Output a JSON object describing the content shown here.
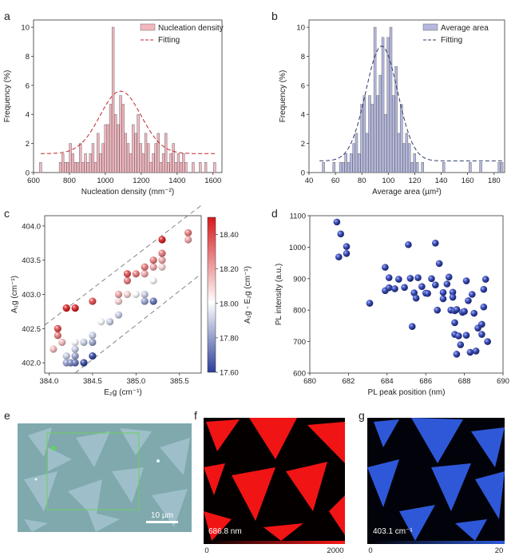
{
  "panels": {
    "a": "a",
    "b": "b",
    "c": "c",
    "d": "d",
    "e": "e",
    "f": "f",
    "g": "g"
  },
  "chart_data": [
    {
      "id": "a",
      "type": "bar",
      "title": "",
      "xlabel": "Nucleation density (mm⁻²)",
      "ylabel": "Frequency (%)",
      "xlim": [
        600,
        1650
      ],
      "ylim": [
        0,
        10.5
      ],
      "xticks": [
        600,
        800,
        1000,
        1200,
        1400,
        1600
      ],
      "yticks": [
        0,
        2,
        4,
        6,
        8,
        10
      ],
      "bin_width": 14,
      "bar_color": "#f4b6bf",
      "fit_color": "#c0262d",
      "legend": [
        "Nucleation density",
        "Fitting"
      ],
      "legend_position": "top-right",
      "bins": [
        [
          640,
          0.7
        ],
        [
          750,
          0.7
        ],
        [
          764,
          1.3
        ],
        [
          778,
          0.7
        ],
        [
          792,
          0.7
        ],
        [
          806,
          2.0
        ],
        [
          820,
          1.3
        ],
        [
          834,
          0.7
        ],
        [
          848,
          0.7
        ],
        [
          862,
          2.0
        ],
        [
          876,
          0.7
        ],
        [
          890,
          1.3
        ],
        [
          904,
          0.7
        ],
        [
          918,
          1.3
        ],
        [
          932,
          2.0
        ],
        [
          946,
          0.7
        ],
        [
          960,
          2.7
        ],
        [
          974,
          1.3
        ],
        [
          988,
          2.0
        ],
        [
          1002,
          3.3
        ],
        [
          1016,
          3.3
        ],
        [
          1030,
          4.7
        ],
        [
          1044,
          10.0
        ],
        [
          1058,
          4.0
        ],
        [
          1072,
          3.3
        ],
        [
          1086,
          5.3
        ],
        [
          1100,
          4.7
        ],
        [
          1114,
          2.7
        ],
        [
          1128,
          2.0
        ],
        [
          1142,
          1.3
        ],
        [
          1156,
          3.3
        ],
        [
          1170,
          2.7
        ],
        [
          1184,
          4.0
        ],
        [
          1198,
          2.0
        ],
        [
          1212,
          1.3
        ],
        [
          1226,
          2.7
        ],
        [
          1240,
          2.0
        ],
        [
          1254,
          0.7
        ],
        [
          1268,
          1.3
        ],
        [
          1282,
          2.0
        ],
        [
          1296,
          2.7
        ],
        [
          1310,
          0.7
        ],
        [
          1324,
          1.3
        ],
        [
          1338,
          2.7
        ],
        [
          1352,
          0.7
        ],
        [
          1366,
          1.3
        ],
        [
          1380,
          2.0
        ],
        [
          1394,
          0.7
        ],
        [
          1408,
          1.3
        ],
        [
          1422,
          0.7
        ],
        [
          1436,
          1.3
        ],
        [
          1450,
          0.7
        ],
        [
          1490,
          0.7
        ],
        [
          1530,
          0.7
        ],
        [
          1560,
          0.7
        ],
        [
          1610,
          0.7
        ]
      ],
      "fit": {
        "model": "gaussian",
        "center": 1085,
        "sigma": 115,
        "amplitude": 4.3,
        "baseline": 1.3,
        "range": [
          640,
          1620
        ]
      }
    },
    {
      "id": "b",
      "type": "bar",
      "title": "",
      "xlabel": "Average area (µm²)",
      "ylabel": "Frequency (%)",
      "xlim": [
        40,
        188
      ],
      "ylim": [
        0,
        10.5
      ],
      "xticks": [
        40,
        60,
        80,
        100,
        120,
        140,
        160,
        180
      ],
      "yticks": [
        0,
        2,
        4,
        6,
        8,
        10
      ],
      "bin_width": 2,
      "bar_color": "#b4b8df",
      "fit_color": "#2d3a6e",
      "legend": [
        "Average area",
        "Fitting"
      ],
      "legend_position": "top-right",
      "bins": [
        [
          51,
          0.7
        ],
        [
          59,
          0.7
        ],
        [
          64,
          0.7
        ],
        [
          66,
          0.7
        ],
        [
          68,
          1.3
        ],
        [
          70,
          0.7
        ],
        [
          72,
          1.3
        ],
        [
          74,
          2.0
        ],
        [
          76,
          2.7
        ],
        [
          78,
          1.3
        ],
        [
          80,
          4.7
        ],
        [
          82,
          5.3
        ],
        [
          84,
          2.7
        ],
        [
          86,
          5.3
        ],
        [
          88,
          4.7
        ],
        [
          90,
          10.0
        ],
        [
          92,
          5.3
        ],
        [
          94,
          6.7
        ],
        [
          96,
          9.3
        ],
        [
          98,
          4.0
        ],
        [
          100,
          9.3
        ],
        [
          102,
          10.0
        ],
        [
          104,
          5.3
        ],
        [
          106,
          7.3
        ],
        [
          108,
          2.7
        ],
        [
          110,
          4.7
        ],
        [
          112,
          2.0
        ],
        [
          114,
          2.7
        ],
        [
          116,
          2.0
        ],
        [
          118,
          0.7
        ],
        [
          120,
          1.3
        ],
        [
          122,
          0.7
        ],
        [
          126,
          0.7
        ],
        [
          142,
          0.7
        ],
        [
          162,
          0.7
        ],
        [
          170,
          0.7
        ],
        [
          184,
          0.7
        ],
        [
          186,
          0.7
        ]
      ],
      "fit": {
        "model": "gaussian",
        "center": 95,
        "sigma": 12,
        "amplitude": 7.9,
        "baseline": 0.8,
        "range": [
          48,
          188
        ]
      }
    },
    {
      "id": "c",
      "type": "scatter",
      "title": "",
      "xlabel": "E₂g (cm⁻¹)",
      "ylabel": "A₁g (cm⁻¹)",
      "colorbar_label": "A₁g - E₂g (cm⁻¹)",
      "xlim": [
        383.95,
        385.75
      ],
      "ylim": [
        401.85,
        404.15
      ],
      "xticks": [
        "384.0",
        "384.5",
        "385.0",
        "385.5"
      ],
      "yticks": [
        "402.0",
        "402.5",
        "403.0",
        "403.5",
        "404.0"
      ],
      "colorbar_range": [
        17.6,
        18.5
      ],
      "colorbar_ticks": [
        "17.60",
        "17.80",
        "18.00",
        "18.20",
        "18.40"
      ],
      "guide_lines": [
        [
          [
            383.95,
            402.55
          ],
          [
            385.75,
            404.3
          ]
        ],
        [
          [
            384.3,
            401.85
          ],
          [
            385.75,
            403.3
          ]
        ]
      ],
      "points": [
        [
          384.05,
          402.2
        ],
        [
          384.1,
          402.4
        ],
        [
          384.1,
          402.5
        ],
        [
          384.15,
          402.3
        ],
        [
          384.2,
          402.1
        ],
        [
          384.3,
          402.2
        ],
        [
          384.2,
          402.0
        ],
        [
          384.25,
          402.0
        ],
        [
          384.3,
          402.3
        ],
        [
          384.3,
          402.1
        ],
        [
          384.3,
          402.0
        ],
        [
          384.4,
          402.0
        ],
        [
          384.4,
          402.3
        ],
        [
          384.5,
          402.1
        ],
        [
          384.5,
          402.3
        ],
        [
          384.5,
          402.4
        ],
        [
          384.3,
          402.8
        ],
        [
          384.5,
          402.9
        ],
        [
          384.2,
          402.8
        ],
        [
          384.6,
          402.6
        ],
        [
          384.7,
          402.6
        ],
        [
          384.8,
          402.7
        ],
        [
          384.8,
          402.9
        ],
        [
          384.8,
          403.0
        ],
        [
          384.9,
          403.0
        ],
        [
          384.9,
          403.2
        ],
        [
          385.0,
          403.0
        ],
        [
          385.0,
          403.3
        ],
        [
          384.9,
          403.3
        ],
        [
          385.1,
          403.0
        ],
        [
          385.1,
          402.9
        ],
        [
          385.2,
          402.9
        ],
        [
          385.2,
          403.2
        ],
        [
          385.1,
          403.3
        ],
        [
          385.1,
          403.4
        ],
        [
          385.2,
          403.4
        ],
        [
          385.2,
          403.5
        ],
        [
          385.3,
          403.4
        ],
        [
          385.3,
          403.5
        ],
        [
          385.3,
          403.6
        ],
        [
          385.3,
          403.8
        ],
        [
          385.6,
          403.9
        ],
        [
          385.6,
          403.8
        ]
      ]
    },
    {
      "id": "d",
      "type": "scatter",
      "title": "",
      "xlabel": "PL peak position (nm)",
      "ylabel": "PL intensity (a.u.)",
      "xlim": [
        680,
        690
      ],
      "ylim": [
        600,
        1100
      ],
      "xticks": [
        680,
        682,
        684,
        686,
        688,
        690
      ],
      "yticks": [
        600,
        700,
        800,
        900,
        1000,
        1100
      ],
      "marker_color": "#3a4aa8",
      "points": [
        [
          681.4,
          1080
        ],
        [
          681.6,
          1042
        ],
        [
          681.9,
          1002
        ],
        [
          681.9,
          980
        ],
        [
          681.5,
          969
        ],
        [
          683.1,
          822
        ],
        [
          683.9,
          936
        ],
        [
          683.9,
          862
        ],
        [
          684.1,
          903
        ],
        [
          684.1,
          871
        ],
        [
          684.4,
          868
        ],
        [
          684.6,
          898
        ],
        [
          684.9,
          872
        ],
        [
          685.1,
          1008
        ],
        [
          685.2,
          901
        ],
        [
          685.3,
          748
        ],
        [
          685.4,
          855
        ],
        [
          685.5,
          838
        ],
        [
          685.6,
          903
        ],
        [
          685.8,
          875
        ],
        [
          686.0,
          854
        ],
        [
          686.1,
          853
        ],
        [
          686.3,
          900
        ],
        [
          686.5,
          880
        ],
        [
          686.5,
          1013
        ],
        [
          686.6,
          800
        ],
        [
          686.7,
          948
        ],
        [
          686.9,
          856
        ],
        [
          686.9,
          836
        ],
        [
          687.1,
          883
        ],
        [
          687.2,
          905
        ],
        [
          687.3,
          800
        ],
        [
          687.4,
          857
        ],
        [
          687.4,
          841
        ],
        [
          687.5,
          798
        ],
        [
          687.5,
          760
        ],
        [
          687.5,
          723
        ],
        [
          687.6,
          660
        ],
        [
          687.6,
          802
        ],
        [
          687.7,
          718
        ],
        [
          687.8,
          690
        ],
        [
          687.9,
          793
        ],
        [
          688.0,
          796
        ],
        [
          688.1,
          893
        ],
        [
          688.1,
          720
        ],
        [
          688.2,
          830
        ],
        [
          688.3,
          666
        ],
        [
          688.4,
          850
        ],
        [
          688.5,
          790
        ],
        [
          688.6,
          670
        ],
        [
          688.7,
          743
        ],
        [
          688.9,
          755
        ],
        [
          688.9,
          723
        ],
        [
          689.0,
          810
        ],
        [
          689.0,
          866
        ],
        [
          689.1,
          898
        ],
        [
          689.2,
          700
        ]
      ]
    }
  ],
  "images": {
    "e": {
      "scale_bar_label": "10 µm"
    },
    "f": {
      "overlay_label": "686.8 nm",
      "colorbar_min": "0",
      "colorbar_max": "2000",
      "color": "#ff1a1a"
    },
    "g": {
      "overlay_label": "403.1 cm⁻¹",
      "colorbar_min": "0",
      "colorbar_max": "20",
      "color": "#2f5bdc"
    }
  }
}
